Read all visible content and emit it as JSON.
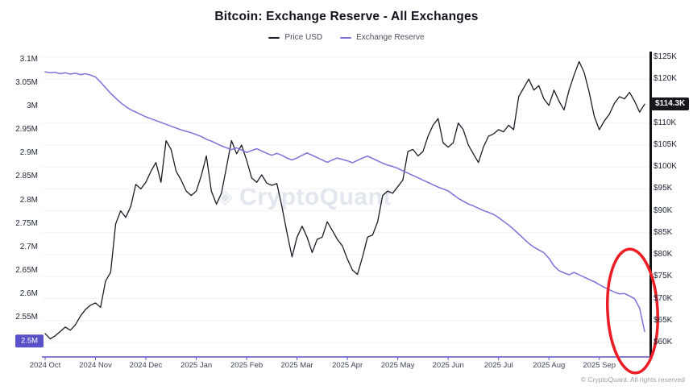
{
  "header": {
    "title": "Bitcoin: Exchange Reserve - All Exchanges"
  },
  "legend": {
    "items": [
      {
        "label": "Price USD",
        "color": "#1a1d26"
      },
      {
        "label": "Exchange Reserve",
        "color": "#7a72d9"
      }
    ]
  },
  "watermark": {
    "icon": "◈",
    "text": "CryptoQuant"
  },
  "footer": {
    "copyright": "© CryptoQuant. All rights reserved"
  },
  "chart_data": {
    "type": "line",
    "title": "Bitcoin: Exchange Reserve - All Exchanges",
    "x_tick_labels": [
      "2024 Oct",
      "2024 Nov",
      "2024 Dec",
      "2025 Jan",
      "2025 Feb",
      "2025 Mar",
      "2025 Apr",
      "2025 May",
      "2025 Jun",
      "2025 Jul",
      "2025 Aug",
      "2025 Sep"
    ],
    "left_axis": {
      "range": [
        2.5,
        3.1
      ],
      "ticks": [
        {
          "label": "3.1M",
          "value": 3.1
        },
        {
          "label": "3.05M",
          "value": 3.05
        },
        {
          "label": "3M",
          "value": 3.0
        },
        {
          "label": "2.95M",
          "value": 2.95
        },
        {
          "label": "2.9M",
          "value": 2.9
        },
        {
          "label": "2.85M",
          "value": 2.85
        },
        {
          "label": "2.8M",
          "value": 2.8
        },
        {
          "label": "2.75M",
          "value": 2.75
        },
        {
          "label": "2.7M",
          "value": 2.7
        },
        {
          "label": "2.65M",
          "value": 2.65
        },
        {
          "label": "2.6M",
          "value": 2.6
        },
        {
          "label": "2.55M",
          "value": 2.55
        }
      ],
      "current_badge": {
        "label": "2.5M",
        "value": 2.5,
        "color": "#5a50c8"
      }
    },
    "right_axis": {
      "range": [
        60,
        125
      ],
      "ticks": [
        {
          "label": "$125K",
          "value": 125
        },
        {
          "label": "$120K",
          "value": 120
        },
        {
          "label": "$110K",
          "value": 110
        },
        {
          "label": "$105K",
          "value": 105
        },
        {
          "label": "$100K",
          "value": 100
        },
        {
          "label": "$95K",
          "value": 95
        },
        {
          "label": "$90K",
          "value": 90
        },
        {
          "label": "$85K",
          "value": 85
        },
        {
          "label": "$80K",
          "value": 80
        },
        {
          "label": "$75K",
          "value": 75
        },
        {
          "label": "$70K",
          "value": 70
        },
        {
          "label": "$65K",
          "value": 65
        },
        {
          "label": "$60K",
          "value": 60
        }
      ],
      "current_badge": {
        "label": "$114.3K",
        "value": 114.3,
        "color": "#17181d"
      }
    },
    "series": [
      {
        "name": "Price USD",
        "axis": "right",
        "color": "#1a1d26",
        "values": [
          62,
          60.8,
          61.5,
          62.5,
          63.5,
          62.8,
          64,
          66,
          67.5,
          68.5,
          69,
          68,
          74,
          76,
          87,
          90,
          88.5,
          91,
          96,
          95,
          96.5,
          99,
          101,
          96.5,
          106,
          104,
          99,
          97,
          94.5,
          93.5,
          94.5,
          98,
          102.5,
          94.5,
          91.5,
          94,
          100,
          106,
          103,
          105,
          101.5,
          97.5,
          96.5,
          98.2,
          96.3,
          95.8,
          96.2,
          91,
          85,
          79.5,
          84,
          86.5,
          84,
          80.5,
          83.5,
          84,
          87.5,
          85.5,
          83.5,
          82,
          79,
          76.5,
          75.5,
          79.5,
          84,
          84.5,
          87.5,
          93.5,
          94.5,
          94,
          95.5,
          97,
          103.5,
          104,
          102.5,
          103.5,
          107,
          109.5,
          111,
          105.5,
          104.5,
          105.5,
          110,
          108.5,
          105,
          103,
          101,
          104.5,
          107,
          107.5,
          108.5,
          108,
          109.5,
          108.5,
          116,
          118,
          120,
          117.5,
          118.5,
          115.5,
          114,
          117.5,
          115,
          113,
          117.5,
          121,
          124,
          121.5,
          117,
          111.5,
          108.5,
          110.5,
          112,
          114.5,
          116,
          115.5,
          117,
          115,
          112.5,
          114.3
        ]
      },
      {
        "name": "Exchange Reserve",
        "axis": "left",
        "color": "#7a72d9",
        "values": [
          3.074,
          3.072,
          3.073,
          3.07,
          3.072,
          3.069,
          3.071,
          3.068,
          3.07,
          3.067,
          3.063,
          3.052,
          3.04,
          3.028,
          3.018,
          3.008,
          3.0,
          2.993,
          2.988,
          2.983,
          2.978,
          2.974,
          2.97,
          2.966,
          2.962,
          2.958,
          2.954,
          2.95,
          2.947,
          2.944,
          2.94,
          2.936,
          2.93,
          2.926,
          2.921,
          2.916,
          2.912,
          2.908,
          2.912,
          2.907,
          2.902,
          2.906,
          2.91,
          2.905,
          2.9,
          2.896,
          2.9,
          2.896,
          2.89,
          2.886,
          2.89,
          2.896,
          2.901,
          2.896,
          2.891,
          2.886,
          2.881,
          2.886,
          2.89,
          2.887,
          2.884,
          2.88,
          2.885,
          2.89,
          2.894,
          2.889,
          2.884,
          2.879,
          2.875,
          2.872,
          2.868,
          2.863,
          2.858,
          2.853,
          2.848,
          2.843,
          2.838,
          2.833,
          2.828,
          2.824,
          2.82,
          2.812,
          2.804,
          2.798,
          2.792,
          2.788,
          2.783,
          2.778,
          2.774,
          2.77,
          2.763,
          2.755,
          2.747,
          2.738,
          2.728,
          2.718,
          2.708,
          2.7,
          2.694,
          2.688,
          2.676,
          2.66,
          2.65,
          2.645,
          2.641,
          2.646,
          2.641,
          2.636,
          2.631,
          2.626,
          2.62,
          2.614,
          2.609,
          2.604,
          2.6,
          2.601,
          2.596,
          2.59,
          2.57,
          2.52
        ]
      }
    ],
    "annotation": {
      "type": "ellipse",
      "color": "#ec1c24"
    },
    "grid": "horizontal-faint",
    "legend_position": "top-center"
  }
}
